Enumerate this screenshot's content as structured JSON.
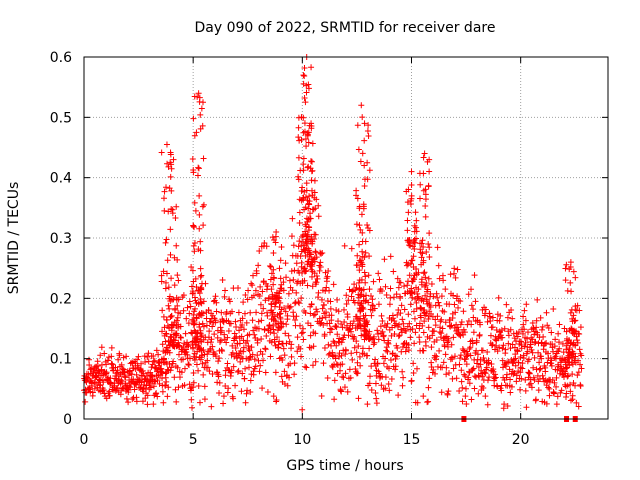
{
  "chart_data": {
    "type": "scatter",
    "title": "Day 090 of 2022, SRMTID for receiver dare",
    "xlabel": "GPS time / hours",
    "ylabel": "SRMTID / TECUs",
    "xlim": [
      0,
      24
    ],
    "ylim": [
      0,
      0.6
    ],
    "xticks": [
      0,
      5,
      10,
      15,
      20
    ],
    "xtick_labels": [
      "0",
      "5",
      "10",
      "15",
      "20"
    ],
    "yticks": [
      0,
      0.1,
      0.2,
      0.3,
      0.4,
      0.5,
      0.6
    ],
    "ytick_labels": [
      "0",
      "0.1",
      "0.2",
      "0.3",
      "0.4",
      "0.5",
      "0.6"
    ],
    "grid": true,
    "marker": "+",
    "color": "#ff0000",
    "series": [
      {
        "name": "SRMTID",
        "profile": {
          "x": [
            0.0,
            1.0,
            2.0,
            3.0,
            3.5,
            3.9,
            4.5,
            5.0,
            6.0,
            7.0,
            8.0,
            9.0,
            9.8,
            10.3,
            11.0,
            11.5,
            12.0,
            12.5,
            13.0,
            14.0,
            14.5,
            15.0,
            15.5,
            16.0,
            17.0,
            18.0,
            19.0,
            20.0,
            21.0,
            21.5,
            22.0,
            22.5,
            22.8
          ],
          "median": [
            0.065,
            0.075,
            0.065,
            0.07,
            0.075,
            0.12,
            0.12,
            0.11,
            0.13,
            0.12,
            0.16,
            0.15,
            0.2,
            0.26,
            0.18,
            0.12,
            0.14,
            0.16,
            0.13,
            0.15,
            0.16,
            0.2,
            0.18,
            0.15,
            0.14,
            0.12,
            0.11,
            0.1,
            0.1,
            0.09,
            0.08,
            0.1,
            0.12
          ]
        },
        "peaks": [
          {
            "x": 3.8,
            "y": 0.455
          },
          {
            "x": 4.1,
            "y": 0.43
          },
          {
            "x": 5.25,
            "y": 0.54
          },
          {
            "x": 5.15,
            "y": 0.475
          },
          {
            "x": 8.8,
            "y": 0.31
          },
          {
            "x": 10.2,
            "y": 0.6
          },
          {
            "x": 10.05,
            "y": 0.57
          },
          {
            "x": 10.4,
            "y": 0.49
          },
          {
            "x": 12.7,
            "y": 0.52
          },
          {
            "x": 12.85,
            "y": 0.49
          },
          {
            "x": 15.0,
            "y": 0.41
          },
          {
            "x": 15.6,
            "y": 0.44
          },
          {
            "x": 22.3,
            "y": 0.26
          }
        ],
        "zero_points": [
          {
            "x": 17.4,
            "y": 0.0
          },
          {
            "x": 22.1,
            "y": 0.0
          },
          {
            "x": 22.5,
            "y": 0.0
          }
        ]
      }
    ]
  }
}
